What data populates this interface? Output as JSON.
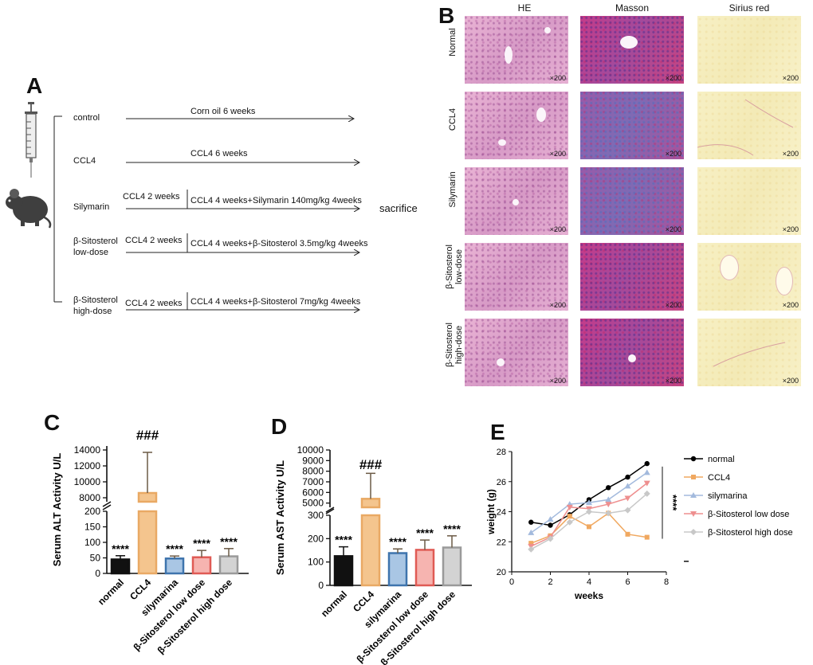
{
  "panels": {
    "a": "A",
    "b": "B",
    "c": "C",
    "d": "D",
    "e": "E"
  },
  "panel_a": {
    "groups": [
      {
        "name": "control",
        "full_bar": "Corn oil 6 weeks"
      },
      {
        "name": "CCL4",
        "full_bar": "CCL4  6 weeks"
      },
      {
        "name": "Silymarin",
        "first_phase": "CCL4  2 weeks",
        "second_phase": "CCL4 4 weeks+Silymarin 140mg/kg 4weeks"
      },
      {
        "name_line1": "β-Sitosterol",
        "name_line2": "low-dose",
        "first_phase": "CCL4  2 weeks",
        "second_phase": "CCL4 4 weeks+β-Sitosterol 3.5mg/kg 4weeks"
      },
      {
        "name_line1": "β-Sitosterol",
        "name_line2": "high-dose",
        "first_phase": "CCL4  2 weeks",
        "second_phase": "CCL4 4 weeks+β-Sitosterol 7mg/kg 4weeks"
      }
    ],
    "endpoint": "sacrifice"
  },
  "panel_b": {
    "columns": [
      "HE",
      "Masson",
      "Sirius red"
    ],
    "rows": [
      {
        "line1": "Normal",
        "line2": ""
      },
      {
        "line1": "CCL4",
        "line2": ""
      },
      {
        "line1": "Silymarin",
        "line2": ""
      },
      {
        "line1": "β-Sitosterol",
        "line2": "low-dose"
      },
      {
        "line1": "β-Sitosterol",
        "line2": "high-dose"
      }
    ],
    "magnification": "×200"
  },
  "chart_data": [
    {
      "type": "bar",
      "panel": "C",
      "ylabel": "Serum ALT Activity U/L",
      "categories": [
        "normal",
        "CCL4",
        "silymarina",
        "β-Sitosterol low dose",
        "β-Sitosterol high dose"
      ],
      "values": [
        45,
        8600,
        48,
        52,
        55
      ],
      "errors": [
        12,
        5100,
        8,
        22,
        25
      ],
      "colors": [
        "#111111",
        "#e9a964",
        "#3e74ad",
        "#e05b55",
        "#9a9a9a"
      ],
      "fills": [
        "#111111",
        "#f4c58e",
        "#a9c6e4",
        "#f6b4b0",
        "#d3d3d3"
      ],
      "annotations": [
        "****",
        "###",
        "****",
        "****",
        "****"
      ],
      "yticks_low": [
        "0",
        "50",
        "100",
        "150",
        "200"
      ],
      "yticks_high": [
        "8000",
        "10000",
        "12000",
        "14000"
      ],
      "ylim_low": [
        0,
        200
      ],
      "ylim_high": [
        7500,
        14500
      ]
    },
    {
      "type": "bar",
      "panel": "D",
      "ylabel": "Serum AST Activity U/L",
      "categories": [
        "normal",
        "CCL4",
        "silymarina",
        "β-Sitosterol low dose",
        "β-Sitosterol high dose"
      ],
      "values": [
        125,
        5400,
        138,
        152,
        162
      ],
      "errors": [
        40,
        2400,
        18,
        42,
        50
      ],
      "colors": [
        "#111111",
        "#e9a964",
        "#3e74ad",
        "#e05b55",
        "#9a9a9a"
      ],
      "fills": [
        "#111111",
        "#f4c58e",
        "#a9c6e4",
        "#f6b4b0",
        "#d3d3d3"
      ],
      "annotations": [
        "****",
        "###",
        "****",
        "****",
        "****"
      ],
      "yticks_low": [
        "0",
        "100",
        "200",
        "300"
      ],
      "yticks_high": [
        "5000",
        "6000",
        "7000",
        "8000",
        "9000",
        "10000"
      ],
      "ylim_low": [
        0,
        300
      ],
      "ylim_high": [
        4600,
        10000
      ]
    },
    {
      "type": "line",
      "panel": "E",
      "xlabel": "weeks",
      "ylabel": "weight (g)",
      "xlim": [
        0,
        8
      ],
      "ylim": [
        20,
        28
      ],
      "xticks": [
        "0",
        "2",
        "4",
        "6",
        "8"
      ],
      "yticks": [
        "20",
        "22",
        "24",
        "26",
        "28"
      ],
      "x": [
        1,
        2,
        3,
        4,
        5,
        6,
        7
      ],
      "series": [
        {
          "name": "normal",
          "color": "#000000",
          "marker": "circle",
          "values": [
            23.3,
            23.1,
            23.8,
            24.8,
            25.6,
            26.3,
            27.2
          ]
        },
        {
          "name": "CCL4",
          "color": "#f0a860",
          "marker": "square",
          "values": [
            21.9,
            22.4,
            23.7,
            23.0,
            23.9,
            22.5,
            22.3
          ]
        },
        {
          "name": "silymarina",
          "color": "#a3badd",
          "marker": "triangle",
          "values": [
            22.6,
            23.5,
            24.5,
            24.6,
            24.8,
            25.7,
            26.6
          ]
        },
        {
          "name": "β-Sitosterol low dose",
          "color": "#ee8f8f",
          "marker": "triangle-down",
          "values": [
            21.7,
            22.3,
            24.3,
            24.2,
            24.5,
            24.9,
            25.9
          ]
        },
        {
          "name": "β-Sitosterol high dose",
          "color": "#c8c8c8",
          "marker": "diamond",
          "values": [
            21.5,
            22.2,
            23.3,
            24.0,
            23.9,
            24.1,
            25.2
          ]
        }
      ],
      "significance": "****"
    }
  ]
}
